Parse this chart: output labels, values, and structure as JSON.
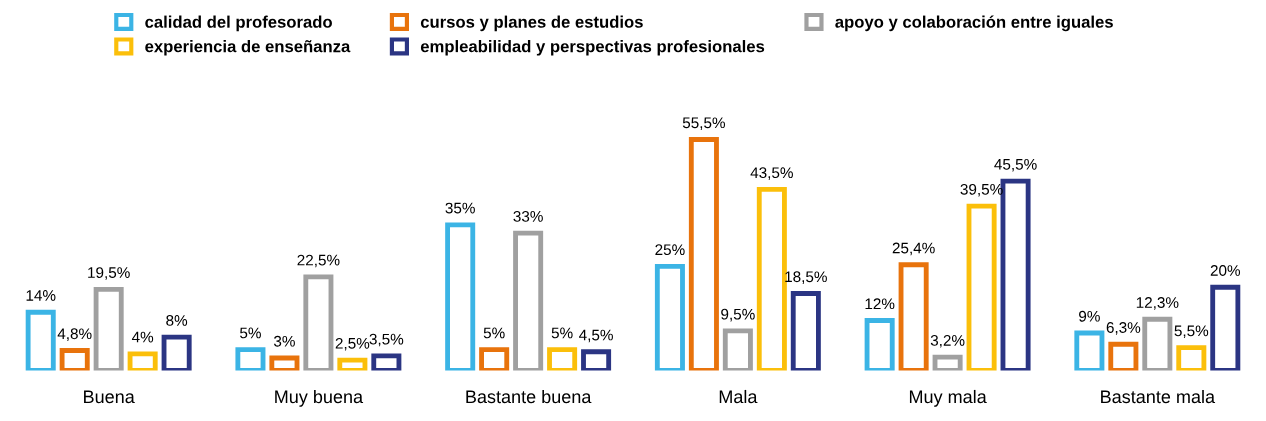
{
  "chart_data": {
    "type": "bar",
    "categories": [
      "Buena",
      "Muy buena",
      "Bastante buena",
      "Mala",
      "Muy mala",
      "Bastante mala"
    ],
    "series": [
      {
        "name": "calidad del profesorado",
        "color": "#3bb4e5",
        "values": [
          14,
          5,
          35,
          25,
          12,
          9
        ],
        "value_labels": [
          "14%",
          "5%",
          "35%",
          "25%",
          "12%",
          "9%"
        ]
      },
      {
        "name": "cursos y planes de estudios",
        "color": "#e8730c",
        "values": [
          4.8,
          3,
          5,
          55.5,
          25.4,
          6.3
        ],
        "value_labels": [
          "4,8%",
          "3%",
          "5%",
          "55,5%",
          "25,4%",
          "6,3%"
        ]
      },
      {
        "name": "apoyo y colaboración entre iguales",
        "color": "#a0a0a0",
        "values": [
          19.5,
          22.5,
          33,
          9.5,
          3.2,
          12.3
        ],
        "value_labels": [
          "19,5%",
          "22,5%",
          "33%",
          "9,5%",
          "3,2%",
          "12,3%"
        ]
      },
      {
        "name": "experiencia de enseñanza",
        "color": "#fbbf0a",
        "values": [
          4,
          2.5,
          5,
          43.5,
          39.5,
          5.5
        ],
        "value_labels": [
          "4%",
          "2,5%",
          "5%",
          "43,5%",
          "39,5%",
          "5,5%"
        ]
      },
      {
        "name": "empleabilidad y perspectivas profesionales",
        "color": "#2b3583",
        "values": [
          8,
          3.5,
          4.5,
          18.5,
          45.5,
          20
        ],
        "value_labels": [
          "8%",
          "3,5%",
          "4,5%",
          "18,5%",
          "45,5%",
          "20%"
        ]
      }
    ],
    "legend": "top",
    "grid": false,
    "tick_labels": "x"
  }
}
